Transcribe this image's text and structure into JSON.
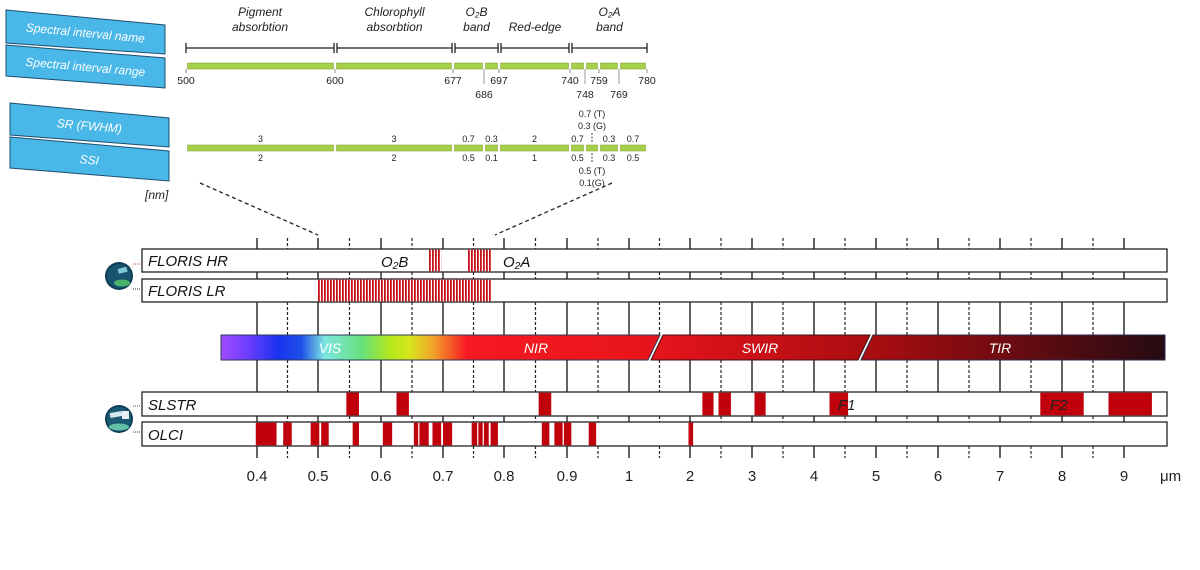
{
  "colors": {
    "label_blue": "#49b8e8",
    "label_border": "#1f4e6e",
    "green": "#a6cf4a",
    "band_red": "#c0000a",
    "hatch_red": "#c8101a"
  },
  "legend_labels": {
    "name": "Spectral interval name",
    "range": "Spectral interval range",
    "sr": "SR (FWHM)",
    "ssi": "SSI",
    "unit": "[nm]"
  },
  "intervals": [
    {
      "name": [
        "Pigment",
        "absorbtion"
      ],
      "from": 500,
      "to": 600
    },
    {
      "name": [
        "Chlorophyll",
        "absorbtion"
      ],
      "from": 600,
      "to": 677
    },
    {
      "name": [
        "O₂B",
        "band"
      ],
      "from": 677,
      "to": 697
    },
    {
      "name": [
        "Red-edge"
      ],
      "from": 697,
      "to": 740
    },
    {
      "name": [
        "O₂A",
        "band"
      ],
      "from": 740,
      "to": 780
    }
  ],
  "range_ticks_top": [
    "500",
    "600",
    "677",
    "697",
    "740",
    "759",
    "780"
  ],
  "range_ticks_bottom": [
    "686",
    "748",
    "769"
  ],
  "sub_intervals": [
    {
      "from": 500,
      "to": 600,
      "sr": "3",
      "ssi": "2"
    },
    {
      "from": 600,
      "to": 677,
      "sr": "3",
      "ssi": "2"
    },
    {
      "from": 677,
      "to": 686,
      "sr": "0.7",
      "ssi": "0.5"
    },
    {
      "from": 686,
      "to": 697,
      "sr": "0.3",
      "ssi": "0.1"
    },
    {
      "from": 697,
      "to": 740,
      "sr": "2",
      "ssi": "1"
    },
    {
      "from": 740,
      "to": 748,
      "sr": "0.7",
      "ssi": "0.5"
    },
    {
      "from": 748,
      "to": 759,
      "sr": "",
      "ssi": ""
    },
    {
      "from": 759,
      "to": 769,
      "sr": "0.3",
      "ssi": "0.3"
    },
    {
      "from": 769,
      "to": 780,
      "sr": "0.7",
      "ssi": "0.5"
    }
  ],
  "o2a_notes": {
    "sr_t": "0.7 (T)",
    "sr_g": "0.3 (G)",
    "ssi_t": "0.5 (T)",
    "ssi_g": "0.1(G)"
  },
  "instruments": {
    "floris_hr": {
      "label": "FLORIS HR",
      "bands": [
        [
          0.677,
          0.697
        ],
        [
          0.74,
          0.78
        ]
      ],
      "o2b": "O₂B",
      "o2a": "O₂A"
    },
    "floris_lr": {
      "label": "FLORIS LR",
      "bands": [
        [
          0.5,
          0.78
        ]
      ]
    },
    "slstr": {
      "label": "SLSTR",
      "bands": [
        [
          0.545,
          0.565
        ],
        [
          0.625,
          0.645
        ],
        [
          0.855,
          0.875
        ],
        [
          2.2,
          2.38
        ],
        [
          2.46,
          2.66
        ],
        [
          3.04,
          3.22
        ],
        [
          4.25,
          4.55
        ],
        [
          7.65,
          8.35
        ],
        [
          8.75,
          9.45
        ]
      ],
      "f1": "F1",
      "f2": "F2"
    },
    "olci": {
      "label": "OLCI",
      "bands": [
        [
          0.398,
          0.432
        ],
        [
          0.443,
          0.457
        ],
        [
          0.488,
          0.502
        ],
        [
          0.505,
          0.517
        ],
        [
          0.555,
          0.565
        ],
        [
          0.603,
          0.618
        ],
        [
          0.653,
          0.66
        ],
        [
          0.662,
          0.677
        ],
        [
          0.683,
          0.697
        ],
        [
          0.7,
          0.715
        ],
        [
          0.747,
          0.756
        ],
        [
          0.758,
          0.765
        ],
        [
          0.767,
          0.775
        ],
        [
          0.778,
          0.79
        ],
        [
          0.86,
          0.872
        ],
        [
          0.88,
          0.893
        ],
        [
          0.895,
          0.907
        ],
        [
          0.935,
          0.947
        ],
        [
          1.975,
          2.05
        ]
      ]
    }
  },
  "spectrum": {
    "vis": "VIS",
    "nir": "NIR",
    "swir": "SWIR",
    "tir": "TIR"
  },
  "axis": {
    "ticks": [
      "0.4",
      "0.5",
      "0.6",
      "0.7",
      "0.8",
      "0.9",
      "1",
      "2",
      "3",
      "4",
      "5",
      "6",
      "7",
      "8",
      "9"
    ],
    "unit": "μm"
  }
}
